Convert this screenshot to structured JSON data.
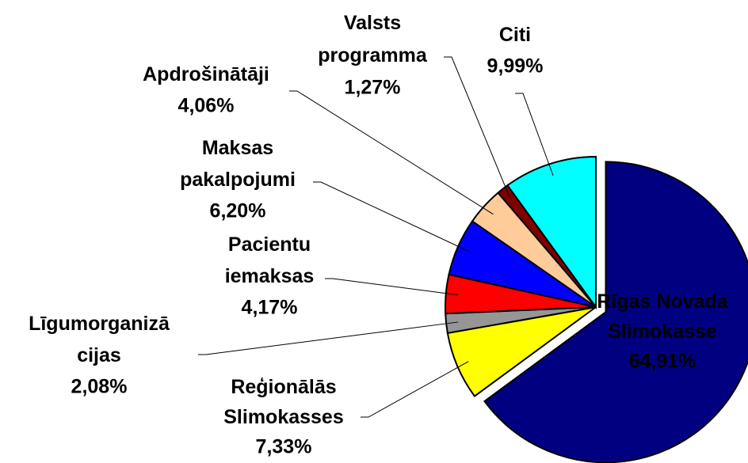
{
  "chart_data": {
    "type": "pie",
    "categories": [
      "Rīgas Novada\nSlimokasse",
      "Reģionālās\nSlimokasses",
      "Līgumorganizā\ncijas",
      "Pacientu\niemaksas",
      "Maksas\npakalpojumi",
      "Apdrošinātāji",
      "Valsts\nprogramma",
      "Citi"
    ],
    "values": [
      64.91,
      7.33,
      2.08,
      4.17,
      6.2,
      4.06,
      1.27,
      9.99
    ],
    "value_labels": [
      "64,91%",
      "7,33%",
      "2,08%",
      "4,17%",
      "6,20%",
      "4,06%",
      "1,27%",
      "9,99%"
    ],
    "colors": [
      "#000080",
      "#ffff00",
      "#969696",
      "#ff0000",
      "#0000ff",
      "#ffcc99",
      "#800000",
      "#00ffff"
    ]
  }
}
